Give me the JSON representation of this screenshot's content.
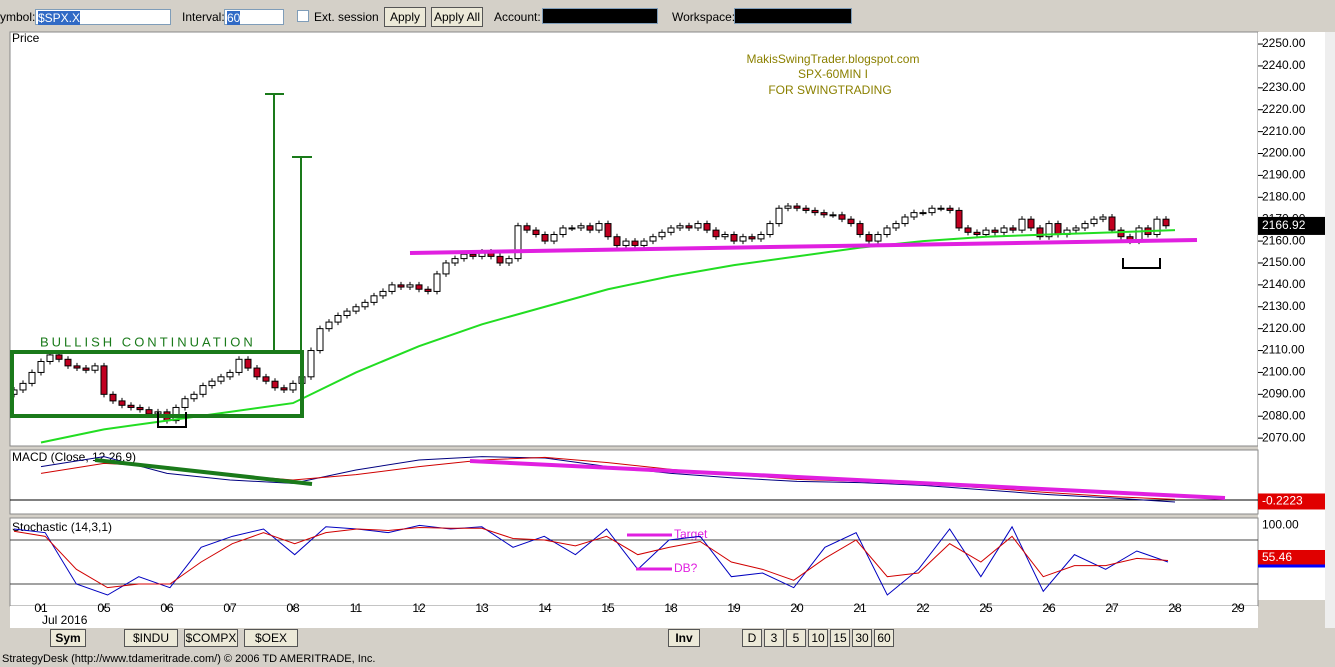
{
  "toolbar": {
    "symbol_label": "ymbol:",
    "symbol": "$SPX.X",
    "interval_label": "Interval:",
    "interval": "60",
    "ext": "Ext. session",
    "apply": "Apply",
    "apply_all": "Apply All",
    "account_label": "Account:",
    "workspace_label": "Workspace:"
  },
  "chart_data": {
    "type": "candlestick",
    "price_label": "Price",
    "watermark": [
      "MakisSwingTrader.blogspot.com",
      "SPX-60MIN  I",
      "FOR SWINGTRADING"
    ],
    "annotation": "BULLISH CONTINUATION",
    "ylim": [
      2066.4,
      2255.5
    ],
    "yticks": [
      {
        "value": 2250,
        "label": "2250.00"
      },
      {
        "value": 2240,
        "label": "2240.00"
      },
      {
        "value": 2230,
        "label": "2230.00"
      },
      {
        "value": 2220,
        "label": "2220.00"
      },
      {
        "value": 2210,
        "label": "2210.00"
      },
      {
        "value": 2200,
        "label": "2200.00"
      },
      {
        "value": 2190,
        "label": "2190.00"
      },
      {
        "value": 2180,
        "label": "2180.00"
      },
      {
        "value": 2170,
        "label": "2170.00"
      },
      {
        "value": 2160,
        "label": "2160.00"
      },
      {
        "value": 2150,
        "label": "2150.00"
      },
      {
        "value": 2140,
        "label": "2140.00"
      },
      {
        "value": 2130,
        "label": "2130.00"
      },
      {
        "value": 2120,
        "label": "2120.00"
      },
      {
        "value": 2110,
        "label": "2110.00"
      },
      {
        "value": 2100,
        "label": "2100.00"
      },
      {
        "value": 2090,
        "label": "2090.00"
      },
      {
        "value": 2080,
        "label": "2080.00"
      },
      {
        "value": 2070,
        "label": "2070.00"
      }
    ],
    "open": 2090,
    "closes": [
      2092,
      2095,
      2100,
      2105,
      2108,
      2106,
      2103,
      2102,
      2101,
      2103,
      2090,
      2087,
      2085,
      2084,
      2083,
      2081,
      2082,
      2078,
      2084,
      2088,
      2090,
      2094,
      2096,
      2098,
      2100,
      2106,
      2102,
      2098,
      2096,
      2093,
      2092,
      2095,
      2098,
      2110,
      2120,
      2123,
      2126,
      2128,
      2130,
      2132,
      2135,
      2137,
      2140,
      2139,
      2140,
      2138,
      2137,
      2145,
      2150,
      2152,
      2154,
      2153,
      2155,
      2153,
      2150,
      2152,
      2167,
      2165,
      2163,
      2160,
      2163,
      2166,
      2166,
      2167,
      2165,
      2168,
      2162,
      2158,
      2160,
      2158,
      2160,
      2162,
      2164,
      2166,
      2167,
      2166,
      2168,
      2165,
      2162,
      2163,
      2160,
      2162,
      2161,
      2163,
      2168,
      2175,
      2176,
      2175,
      2174,
      2173,
      2172,
      2172,
      2170,
      2168,
      2163,
      2160,
      2163,
      2166,
      2168,
      2171,
      2173,
      2173,
      2175,
      2175,
      2174,
      2166,
      2164,
      2163,
      2165,
      2164,
      2166,
      2165,
      2170,
      2166,
      2162,
      2168,
      2163,
      2165,
      2166,
      2168,
      2170,
      2171,
      2165,
      2162,
      2160,
      2166,
      2163,
      2170,
      2167
    ],
    "last_price": 2166.92,
    "ma": [
      2068,
      2074,
      2078,
      2082,
      2086,
      2100,
      2112,
      2122,
      2130,
      2138,
      2144,
      2149,
      2153,
      2157,
      2160,
      2162,
      2163,
      2164,
      2165
    ],
    "days": [
      "01",
      "05",
      "06",
      "07",
      "08",
      "11",
      "12",
      "13",
      "14",
      "15",
      "18",
      "19",
      "20",
      "21",
      "22",
      "25",
      "26",
      "27",
      "28",
      "29"
    ],
    "month": "Jul 2016",
    "macd": {
      "title": "MACD (Close, 12,26,9)",
      "ylim": [
        -1.8,
        7.5
      ],
      "macd": [
        5,
        6.5,
        4,
        3,
        2.5,
        4.5,
        6,
        6.5,
        6.3,
        5,
        4,
        3.3,
        2.8,
        2.6,
        2.2,
        1.5,
        0.8,
        0.3,
        -0.3
      ],
      "signal": [
        4,
        5.5,
        5,
        3.8,
        3,
        3.8,
        5,
        6,
        6.4,
        5.6,
        4.6,
        3.8,
        3.1,
        2.8,
        2.4,
        1.8,
        1.1,
        0.5,
        0.1
      ],
      "last": -0.2223
    },
    "stoch": {
      "title": "Stochastic (14,3,1)",
      "ylim": [
        -10,
        110
      ],
      "levels": [
        80,
        20
      ],
      "top_label": {
        "value": 100,
        "label": "100.00"
      },
      "last": 55.46,
      "target": "Target",
      "db": "DB?",
      "k": [
        95,
        90,
        20,
        5,
        30,
        15,
        70,
        85,
        95,
        60,
        98,
        95,
        90,
        100,
        95,
        98,
        70,
        85,
        60,
        95,
        40,
        80,
        85,
        30,
        35,
        15,
        70,
        90,
        5,
        40,
        95,
        30,
        98,
        10,
        60,
        40,
        65,
        50
      ],
      "d": [
        92,
        85,
        40,
        15,
        20,
        20,
        50,
        75,
        90,
        75,
        90,
        95,
        93,
        97,
        96,
        96,
        82,
        80,
        72,
        85,
        60,
        70,
        78,
        50,
        40,
        25,
        55,
        80,
        30,
        35,
        75,
        50,
        85,
        30,
        45,
        45,
        55,
        52
      ]
    }
  },
  "tabs": {
    "sym": "Sym",
    "symbols": [
      "$INDU",
      "$COMPX",
      "$OEX"
    ],
    "inv": "Inv",
    "intervals": [
      "D",
      "3",
      "5",
      "10",
      "15",
      "30",
      "60"
    ]
  },
  "status": "StrategyDesk (http://www.tdameritrade.com/) © 2006 TD AMERITRADE, Inc."
}
